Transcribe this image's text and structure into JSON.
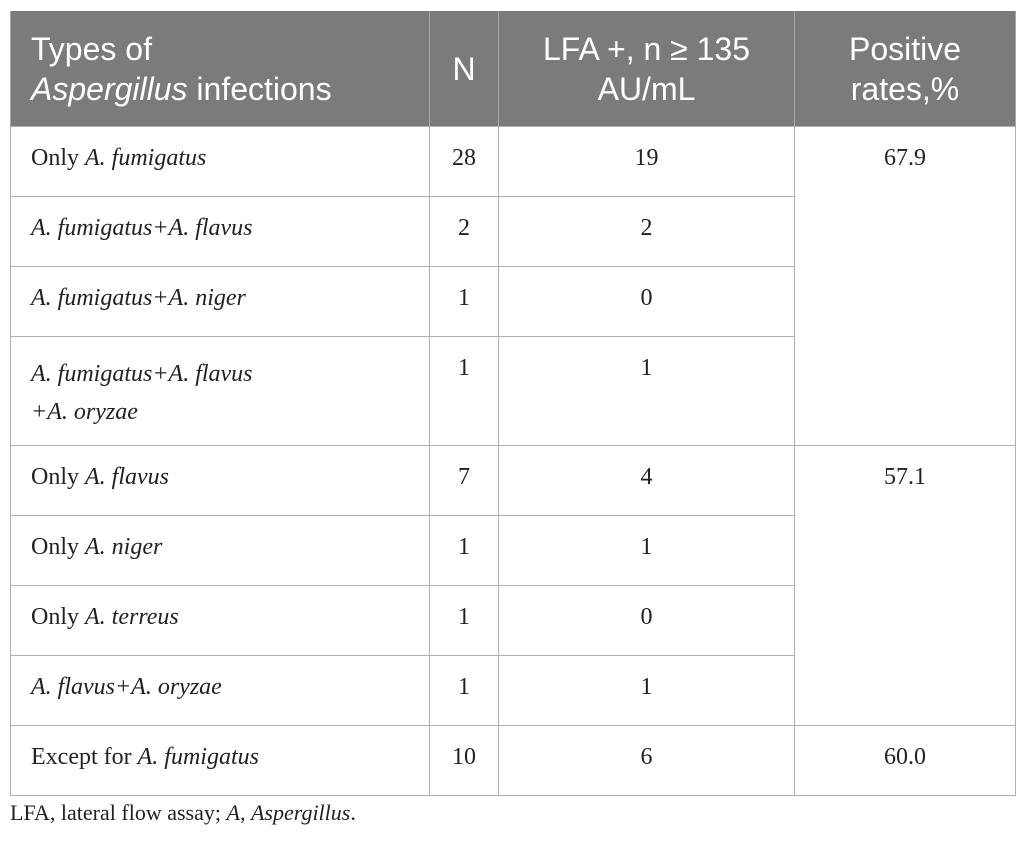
{
  "table": {
    "headers": {
      "col1_line1": "Types of",
      "col1_italic": "Aspergillus",
      "col1_rest": " infections",
      "col2": "N",
      "col3_line1": "LFA +, n ≥ 135",
      "col3_line2": "AU/mL",
      "col4_line1": "Positive",
      "col4_line2": "rates,%"
    },
    "rows": [
      {
        "prefix": "Only ",
        "italic": "A. fumigatus",
        "n": "28",
        "lfa": "19",
        "rate": "67.9"
      },
      {
        "prefix": "",
        "italic": "A. fumigatus+A. flavus",
        "n": "2",
        "lfa": "2"
      },
      {
        "prefix": "",
        "italic": "A. fumigatus+A. niger",
        "n": "1",
        "lfa": "0"
      },
      {
        "prefix": "",
        "italic": "A. fumigatus+A. flavus",
        "italic2": "+A. oryzae",
        "n": "1",
        "lfa": "1"
      },
      {
        "prefix": "Only ",
        "italic": "A. flavus",
        "n": "7",
        "lfa": "4",
        "rate": "57.1"
      },
      {
        "prefix": "Only ",
        "italic": "A. niger",
        "n": "1",
        "lfa": "1"
      },
      {
        "prefix": "Only ",
        "italic": "A. terreus",
        "n": "1",
        "lfa": "0"
      },
      {
        "prefix": "",
        "italic": "A. flavus+A. oryzae",
        "n": "1",
        "lfa": "1"
      },
      {
        "prefix": "Except for ",
        "italic": "A. fumigatus",
        "n": "10",
        "lfa": "6",
        "rate": "60.0"
      }
    ]
  },
  "footnote": {
    "text1": "LFA, lateral flow assay; ",
    "italic": "A",
    "text2": ", ",
    "italic2": "Aspergillus",
    "text3": "."
  }
}
